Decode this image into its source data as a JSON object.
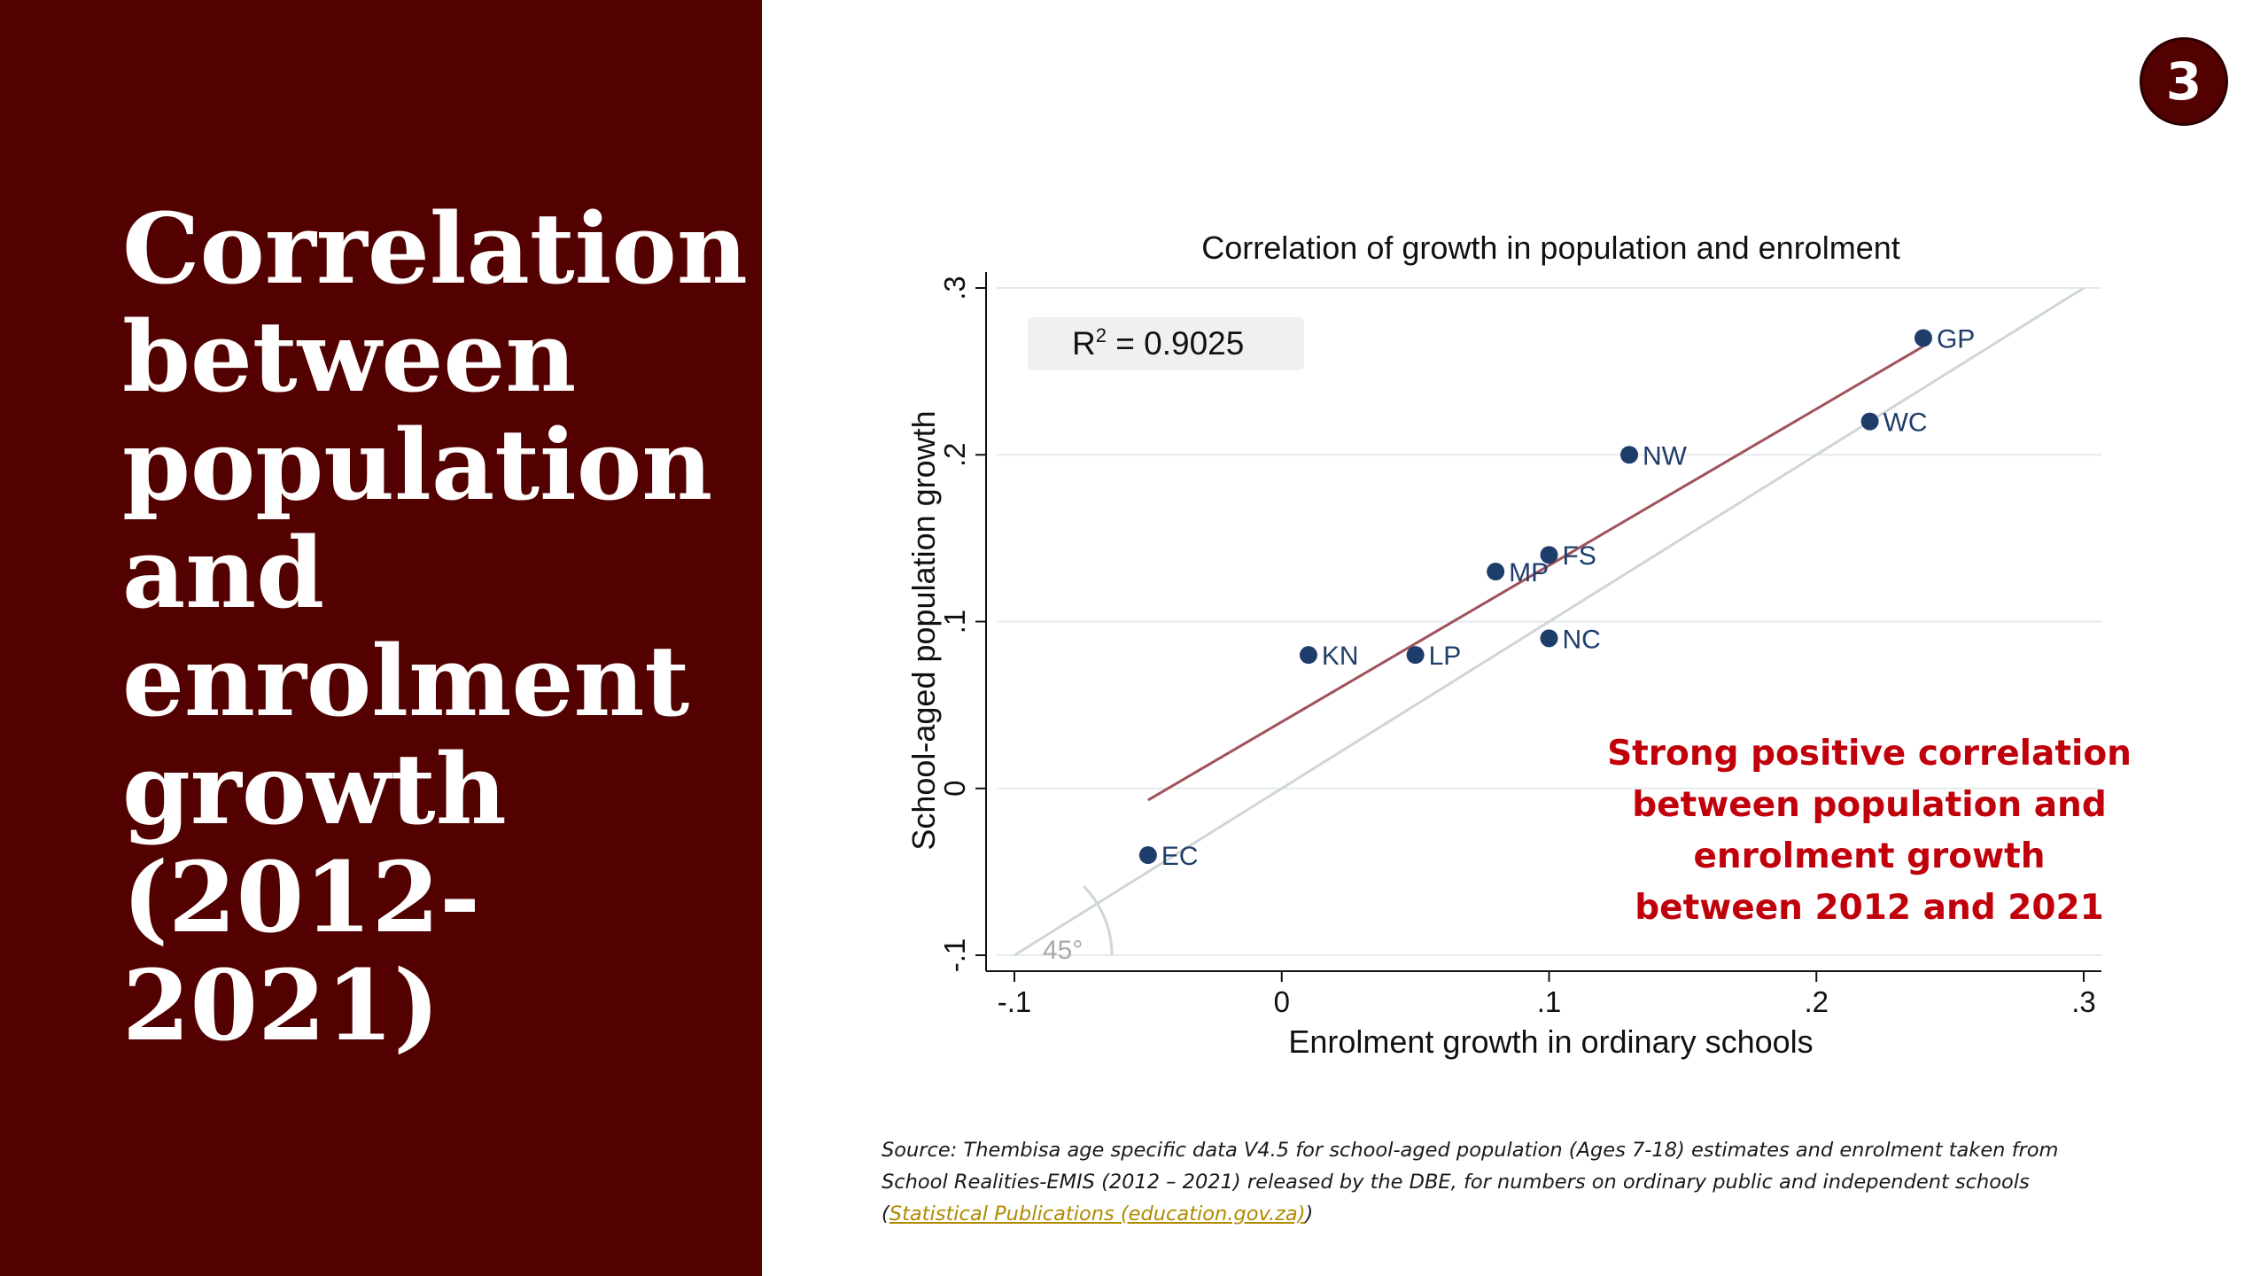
{
  "slide": {
    "title": "Correlation between population and enrolment growth (2012-2021)",
    "number": "3",
    "accent_color": "#520000"
  },
  "annotation": {
    "lines": [
      "Strong positive correlation",
      "between population and",
      "enrolment growth",
      "between 2012 and 2021"
    ],
    "color": "#c0000a"
  },
  "source": {
    "line1": "Source: Thembisa age specific data V4.5 for school-aged population (Ages 7-18) estimates and enrolment taken from",
    "line2": "School Realities-EMIS (2012 – 2021) released by the DBE, for numbers on ordinary public and independent schools",
    "open_paren": "(",
    "link_text": "Statistical Publications (education.gov.za)",
    "close_paren": ")"
  },
  "chart_data": {
    "type": "scatter",
    "title": "Correlation of growth in population and enrolment",
    "xlabel": "Enrolment growth in ordinary schools",
    "ylabel": "School-aged population growth",
    "xlim": [
      -0.1,
      0.3
    ],
    "ylim": [
      -0.1,
      0.3
    ],
    "xticks": [
      -0.1,
      0,
      0.1,
      0.2,
      0.3
    ],
    "xtick_labels": [
      "-.1",
      "0",
      ".1",
      ".2",
      ".3"
    ],
    "yticks": [
      -0.1,
      0,
      0.1,
      0.2,
      0.3
    ],
    "ytick_labels": [
      "-.1",
      "0",
      ".1",
      ".2",
      ".3"
    ],
    "grid": true,
    "r2_label": "R",
    "r2_sup": "2",
    "r2_eq": " = ",
    "r2_value": "0.9025",
    "reference_line_label": "45°",
    "points": [
      {
        "label": "GP",
        "x": 0.24,
        "y": 0.27
      },
      {
        "label": "WC",
        "x": 0.22,
        "y": 0.22
      },
      {
        "label": "NW",
        "x": 0.13,
        "y": 0.2
      },
      {
        "label": "FS",
        "x": 0.1,
        "y": 0.14
      },
      {
        "label": "MP",
        "x": 0.08,
        "y": 0.13
      },
      {
        "label": "NC",
        "x": 0.1,
        "y": 0.09
      },
      {
        "label": "KN",
        "x": 0.01,
        "y": 0.08
      },
      {
        "label": "LP",
        "x": 0.05,
        "y": 0.08
      },
      {
        "label": "EC",
        "x": -0.05,
        "y": -0.04
      }
    ],
    "fit_line": {
      "x": [
        -0.05,
        0.24
      ],
      "y": [
        -0.007,
        0.265
      ],
      "color": "#a0525a"
    },
    "point_color": "#1f3d6b",
    "label_color": "#1f3d6b"
  }
}
